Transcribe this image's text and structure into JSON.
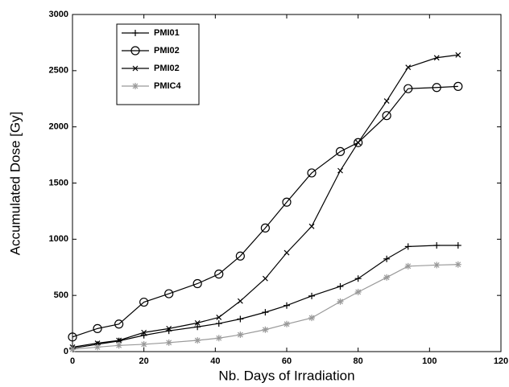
{
  "chart_data": {
    "type": "line",
    "x_label": "Nb. Days of Irradiation",
    "y_label": "Accumulated Dose [Gy]",
    "x": [
      0,
      7,
      13,
      20,
      27,
      35,
      41,
      47,
      54,
      60,
      67,
      75,
      80,
      88,
      94,
      102,
      108
    ],
    "series": [
      {
        "name": "PMI01",
        "color": "#000000",
        "marker": "+",
        "values": [
          30,
          65,
          95,
          145,
          185,
          220,
          250,
          290,
          350,
          410,
          495,
          580,
          650,
          825,
          935,
          945,
          945
        ]
      },
      {
        "name": "PMI02",
        "color": "#000000",
        "marker": "o",
        "values": [
          130,
          205,
          245,
          440,
          515,
          605,
          690,
          850,
          1100,
          1330,
          1590,
          1780,
          1860,
          2100,
          2340,
          2350,
          2360
        ]
      },
      {
        "name": "PMI02",
        "color": "#000000",
        "marker": "x",
        "values": [
          40,
          75,
          100,
          170,
          205,
          255,
          305,
          450,
          650,
          880,
          1115,
          1610,
          1860,
          2230,
          2530,
          2615,
          2640
        ]
      },
      {
        "name": "PMIC4",
        "color": "#999999",
        "marker": "*",
        "values": [
          20,
          40,
          55,
          65,
          80,
          100,
          120,
          150,
          195,
          245,
          300,
          445,
          530,
          660,
          760,
          770,
          775
        ]
      }
    ],
    "xlim": [
      0,
      120
    ],
    "xticks": [
      0,
      20,
      40,
      60,
      80,
      100,
      120
    ],
    "ylim": [
      0,
      3000
    ],
    "yticks": [
      0,
      500,
      1000,
      1500,
      2000,
      2500,
      3000
    ],
    "legend": "upper left"
  }
}
